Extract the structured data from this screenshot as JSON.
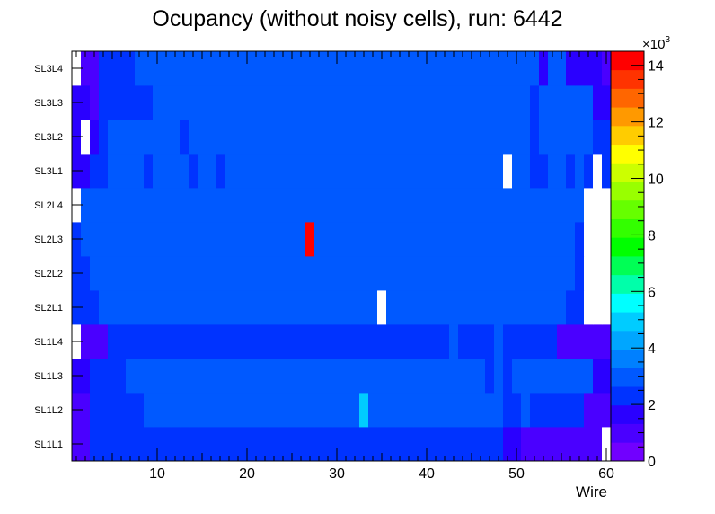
{
  "chart_data": {
    "type": "heatmap",
    "title": "Ocupancy (without noisy cells), run: 6442",
    "xlabel": "Wire",
    "ylabel": "",
    "x_range": [
      0.5,
      60.5
    ],
    "x_ticks": [
      10,
      20,
      30,
      40,
      50,
      60
    ],
    "rows": [
      "SL1L1",
      "SL1L2",
      "SL1L3",
      "SL1L4",
      "SL2L1",
      "SL2L2",
      "SL2L3",
      "SL2L4",
      "SL3L1",
      "SL3L2",
      "SL3L3",
      "SL3L4"
    ],
    "color_scale": {
      "min": 0,
      "max": 14500,
      "tick_values": [
        0,
        2,
        4,
        6,
        8,
        10,
        12,
        14
      ],
      "multiplier_label": "×10",
      "multiplier_exponent": "3",
      "palette": [
        "#7100ff",
        "#4a00ff",
        "#2a00ff",
        "#0033ff",
        "#0059ff",
        "#0080ff",
        "#00a6ff",
        "#00ccff",
        "#00ffff",
        "#00ffaa",
        "#00ff55",
        "#00ff00",
        "#33ff00",
        "#66ff00",
        "#99ff00",
        "#ccff00",
        "#ffff00",
        "#ffcc00",
        "#ff9900",
        "#ff6600",
        "#ff3300",
        "#ff0000"
      ]
    },
    "values": [
      [
        1100,
        1100,
        2200,
        2200,
        2200,
        2200,
        2200,
        2200,
        2200,
        2200,
        2200,
        2200,
        2200,
        2200,
        2200,
        2200,
        2200,
        2200,
        2200,
        2200,
        2200,
        2200,
        2200,
        2200,
        2200,
        2200,
        2200,
        2200,
        2200,
        2200,
        2200,
        2200,
        2200,
        2200,
        2200,
        2200,
        2200,
        2200,
        2200,
        2200,
        2200,
        2200,
        2200,
        2200,
        2200,
        2200,
        2200,
        2200,
        1600,
        1600,
        1100,
        1100,
        1100,
        1100,
        1100,
        1100,
        1100,
        1100,
        1100,
        0
      ],
      [
        1100,
        1100,
        2200,
        2200,
        2200,
        2200,
        2200,
        2200,
        3000,
        3000,
        3000,
        3000,
        3000,
        3000,
        3000,
        3000,
        3000,
        3000,
        3000,
        3000,
        3000,
        3000,
        3000,
        3000,
        3000,
        3000,
        3000,
        3000,
        3000,
        3000,
        3000,
        3000,
        5000,
        3000,
        3000,
        3000,
        3000,
        3000,
        3000,
        3000,
        3000,
        3000,
        3000,
        3000,
        3000,
        3000,
        3000,
        3000,
        2200,
        2200,
        3000,
        2200,
        2200,
        2200,
        2200,
        2200,
        2200,
        1100,
        1100,
        1100
      ],
      [
        1600,
        1600,
        2200,
        2200,
        2200,
        2200,
        3000,
        3000,
        3000,
        3000,
        3000,
        3000,
        3000,
        3000,
        3000,
        3000,
        3000,
        3000,
        3000,
        3000,
        3000,
        3000,
        3000,
        3000,
        3000,
        3000,
        3000,
        3000,
        3000,
        3000,
        3000,
        3000,
        3000,
        3000,
        3000,
        3000,
        3000,
        3000,
        3000,
        3000,
        3000,
        3000,
        3000,
        3000,
        3000,
        3000,
        2200,
        3000,
        2200,
        3000,
        3000,
        3000,
        3000,
        3000,
        3000,
        3000,
        3000,
        3000,
        1600,
        1600
      ],
      [
        0,
        1100,
        1100,
        1100,
        2200,
        2200,
        2200,
        2200,
        2200,
        2200,
        2200,
        2200,
        2200,
        2200,
        2200,
        2200,
        2200,
        2200,
        2200,
        2200,
        2200,
        2200,
        2200,
        2200,
        2200,
        2200,
        2200,
        2200,
        2200,
        2200,
        2200,
        2200,
        2200,
        2200,
        2200,
        2200,
        2200,
        2200,
        2200,
        2200,
        2200,
        2200,
        3000,
        2200,
        2200,
        2200,
        2200,
        3000,
        2200,
        2200,
        2200,
        2200,
        2200,
        2200,
        1100,
        1100,
        1100,
        1100,
        1100,
        1100
      ],
      [
        2200,
        2200,
        2200,
        3000,
        3000,
        3000,
        3000,
        3000,
        3000,
        3000,
        3000,
        3000,
        3000,
        3000,
        3000,
        3000,
        3000,
        3000,
        3000,
        3000,
        3000,
        3000,
        3000,
        3000,
        3000,
        3000,
        3000,
        3000,
        3000,
        3000,
        3000,
        3000,
        3000,
        3000,
        0,
        3000,
        3000,
        3000,
        3000,
        3000,
        3000,
        3000,
        3000,
        3000,
        3000,
        3000,
        3000,
        3000,
        3000,
        3000,
        3000,
        3000,
        3000,
        3000,
        3000,
        2200,
        2200,
        0,
        0,
        0
      ],
      [
        2200,
        2200,
        3000,
        3000,
        3000,
        3000,
        3000,
        3000,
        3000,
        3000,
        3000,
        3000,
        3000,
        3000,
        3000,
        3000,
        3000,
        3000,
        3000,
        3000,
        3000,
        3000,
        3000,
        3000,
        3000,
        3000,
        3000,
        3000,
        3000,
        3000,
        3000,
        3000,
        3000,
        3000,
        3000,
        3000,
        3000,
        3000,
        3000,
        3000,
        3000,
        3000,
        3000,
        3000,
        3000,
        3000,
        3000,
        3000,
        3000,
        3000,
        3000,
        3000,
        3000,
        3000,
        3000,
        3000,
        2200,
        0,
        0,
        0
      ],
      [
        2200,
        3000,
        3000,
        3000,
        3000,
        3000,
        3000,
        3000,
        3000,
        3000,
        3000,
        3000,
        3000,
        3000,
        3000,
        3000,
        3000,
        3000,
        3000,
        3000,
        3000,
        3000,
        3000,
        3000,
        3000,
        3000,
        14500,
        3000,
        3000,
        3000,
        3000,
        3000,
        3000,
        3000,
        3000,
        3000,
        3000,
        3000,
        3000,
        3000,
        3000,
        3000,
        3000,
        3000,
        3000,
        3000,
        3000,
        3000,
        3000,
        3000,
        3000,
        3000,
        3000,
        3000,
        3000,
        3000,
        2200,
        0,
        0,
        0
      ],
      [
        0,
        3000,
        3000,
        3000,
        3000,
        3000,
        3000,
        3000,
        3000,
        3000,
        3000,
        3000,
        3000,
        3000,
        3000,
        3000,
        3000,
        3000,
        3000,
        3000,
        3000,
        3000,
        3000,
        3000,
        3000,
        3000,
        3000,
        3000,
        3000,
        3000,
        3000,
        3000,
        3000,
        3000,
        3000,
        3000,
        3000,
        3000,
        3000,
        3000,
        3000,
        3000,
        3000,
        3000,
        3000,
        3000,
        3000,
        3000,
        3000,
        3000,
        3000,
        3000,
        3000,
        3000,
        3000,
        3000,
        3000,
        0,
        0,
        0
      ],
      [
        1600,
        1600,
        2200,
        2200,
        3000,
        3000,
        3000,
        3000,
        2200,
        3000,
        3000,
        3000,
        3000,
        2200,
        3000,
        3000,
        2200,
        3000,
        3000,
        3000,
        3000,
        3000,
        3000,
        3000,
        3000,
        3000,
        3000,
        3000,
        3000,
        3000,
        3000,
        3000,
        3000,
        3000,
        3000,
        3000,
        3000,
        3000,
        3000,
        3000,
        3000,
        3000,
        3000,
        3000,
        3000,
        3000,
        3000,
        3000,
        0,
        3000,
        3000,
        2200,
        2200,
        3000,
        3000,
        2200,
        3000,
        2200,
        0,
        2200
      ],
      [
        1600,
        0,
        1600,
        2200,
        3000,
        3000,
        3000,
        3000,
        3000,
        3000,
        3000,
        3000,
        2200,
        3000,
        3000,
        3000,
        3000,
        3000,
        3000,
        3000,
        3000,
        3000,
        3000,
        3000,
        3000,
        3000,
        3000,
        3000,
        3000,
        3000,
        3000,
        3000,
        3000,
        3000,
        3000,
        3000,
        3000,
        3000,
        3000,
        3000,
        3000,
        3000,
        3000,
        3000,
        3000,
        3000,
        3000,
        3000,
        3000,
        3000,
        3000,
        2200,
        3000,
        3000,
        3000,
        3000,
        3000,
        3000,
        2200,
        2200
      ],
      [
        1600,
        1600,
        1100,
        2200,
        2200,
        2200,
        2200,
        2200,
        2200,
        3000,
        3000,
        3000,
        3000,
        3000,
        3000,
        3000,
        3000,
        3000,
        3000,
        3000,
        3000,
        3000,
        3000,
        3000,
        3000,
        3000,
        3000,
        3000,
        3000,
        3000,
        3000,
        3000,
        3000,
        3000,
        3000,
        3000,
        3000,
        3000,
        3000,
        3000,
        3000,
        3000,
        3000,
        3000,
        3000,
        3000,
        3000,
        3000,
        3000,
        3000,
        3000,
        2200,
        3000,
        3000,
        3000,
        3000,
        3000,
        3000,
        1600,
        1600
      ],
      [
        0,
        1100,
        1100,
        2200,
        2200,
        2200,
        2200,
        3000,
        3000,
        3000,
        3000,
        3000,
        3000,
        3000,
        3000,
        3000,
        3000,
        3000,
        3000,
        3000,
        3000,
        3000,
        3000,
        3000,
        3000,
        3000,
        3000,
        3000,
        3000,
        3000,
        3000,
        3000,
        3000,
        3000,
        3000,
        3000,
        3000,
        3000,
        3000,
        3000,
        3000,
        3000,
        3000,
        3000,
        3000,
        3000,
        3000,
        3000,
        3000,
        3000,
        3000,
        3000,
        1600,
        3000,
        3000,
        1600,
        1600,
        1600,
        1600,
        1100
      ]
    ]
  }
}
